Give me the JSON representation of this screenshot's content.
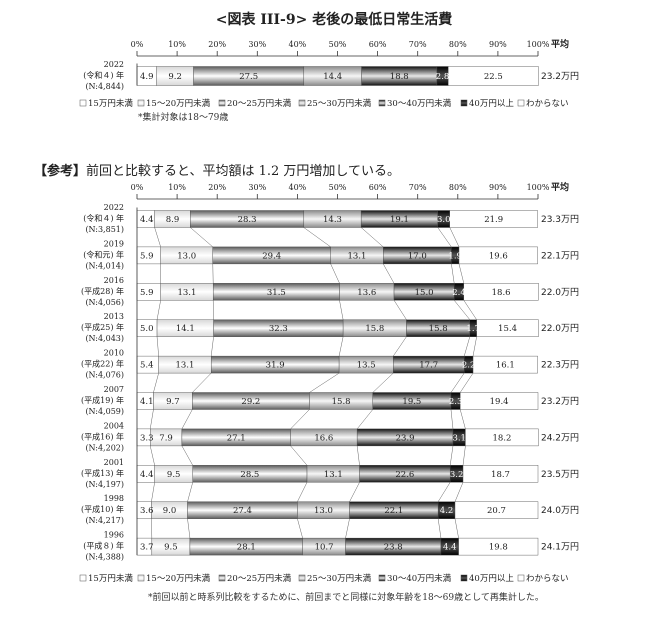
{
  "title": "<図表 III-9> 老後の最低日常生活費",
  "reference": {
    "tag": "【参考】",
    "text": "前回と比較すると、平均額は 1.2 万円増加している。"
  },
  "axis": {
    "ticks": [
      "0%",
      "10%",
      "20%",
      "30%",
      "40%",
      "50%",
      "60%",
      "70%",
      "80%",
      "90%",
      "100%"
    ],
    "avg_header": "平均"
  },
  "legend": [
    "15万円未満",
    "15～20万円未満",
    "20～25万円未満",
    "25～30万円未満",
    "30～40万円未満",
    "40万円以上",
    "わからない"
  ],
  "notes": {
    "chart1": "*集計対象は18～79歳",
    "chart2": "*前回以前と時系列比較をするために、前回までと同様に対象年齢を18～69歳として再集計した。"
  },
  "chart_data": [
    {
      "type": "bar",
      "stacked": true,
      "orientation": "horizontal",
      "xlim": [
        0,
        100
      ],
      "categories": [
        "2022 (令和４) 年 (N:4,844)"
      ],
      "rows": [
        {
          "year": "2022",
          "era": "(令和４) 年",
          "n": "(N:4,844)",
          "values": [
            4.9,
            9.2,
            27.5,
            14.4,
            18.8,
            2.8,
            22.5
          ],
          "labels": [
            "4.9",
            "9.2",
            "27.5",
            "14.4",
            "18.8",
            "2.8",
            "22.5"
          ],
          "avg": "23.2万円"
        }
      ]
    },
    {
      "type": "bar",
      "stacked": true,
      "orientation": "horizontal",
      "xlim": [
        0,
        100
      ],
      "rows": [
        {
          "year": "2022",
          "era": "(令和４) 年",
          "n": "(N:3,851)",
          "values": [
            4.4,
            8.9,
            28.3,
            14.3,
            19.1,
            3.0,
            21.9
          ],
          "labels": [
            "4.4",
            "8.9",
            "28.3",
            "14.3",
            "19.1",
            "3.0",
            "21.9"
          ],
          "avg": "23.3万円"
        },
        {
          "year": "2019",
          "era": "(令和元) 年",
          "n": "(N:4,014)",
          "values": [
            5.9,
            13.0,
            29.4,
            13.1,
            17.0,
            1.9,
            19.6
          ],
          "labels": [
            "5.9",
            "13.0",
            "29.4",
            "13.1",
            "17.0",
            "1.9",
            "19.6"
          ],
          "avg": "22.1万円"
        },
        {
          "year": "2016",
          "era": "(平成28) 年",
          "n": "(N:4,056)",
          "values": [
            5.9,
            13.1,
            31.5,
            13.6,
            15.0,
            2.4,
            18.6
          ],
          "labels": [
            "5.9",
            "13.1",
            "31.5",
            "13.6",
            "15.0",
            "2.4",
            "18.6"
          ],
          "avg": "22.0万円"
        },
        {
          "year": "2013",
          "era": "(平成25) 年",
          "n": "(N:4,043)",
          "values": [
            5.0,
            14.1,
            32.3,
            15.8,
            15.8,
            1.7,
            15.4
          ],
          "labels": [
            "5.0",
            "14.1",
            "32.3",
            "15.8",
            "15.8",
            "1.7",
            "15.4"
          ],
          "avg": "22.0万円"
        },
        {
          "year": "2010",
          "era": "(平成22) 年",
          "n": "(N:4,076)",
          "values": [
            5.4,
            13.1,
            31.9,
            13.5,
            17.7,
            2.2,
            16.1
          ],
          "labels": [
            "5.4",
            "13.1",
            "31.9",
            "13.5",
            "17.7",
            "2.2",
            "16.1"
          ],
          "avg": "22.3万円"
        },
        {
          "year": "2007",
          "era": "(平成19) 年",
          "n": "(N:4,059)",
          "values": [
            4.1,
            9.7,
            29.2,
            15.8,
            19.5,
            2.3,
            19.4
          ],
          "labels": [
            "4.1",
            "9.7",
            "29.2",
            "15.8",
            "19.5",
            "2.3",
            "19.4"
          ],
          "avg": "23.2万円"
        },
        {
          "year": "2004",
          "era": "(平成16) 年",
          "n": "(N:4,202)",
          "values": [
            3.3,
            7.9,
            27.1,
            16.6,
            23.9,
            3.1,
            18.2
          ],
          "labels": [
            "3.3",
            "7.9",
            "27.1",
            "16.6",
            "23.9",
            "3.1",
            "18.2"
          ],
          "avg": "24.2万円"
        },
        {
          "year": "2001",
          "era": "(平成13) 年",
          "n": "(N:4,197)",
          "values": [
            4.4,
            9.5,
            28.5,
            13.1,
            22.6,
            3.2,
            18.7
          ],
          "labels": [
            "4.4",
            "9.5",
            "28.5",
            "13.1",
            "22.6",
            "3.2",
            "18.7"
          ],
          "avg": "23.5万円"
        },
        {
          "year": "1998",
          "era": "(平成10) 年",
          "n": "(N:4,217)",
          "values": [
            3.6,
            9.0,
            27.4,
            13.0,
            22.1,
            4.2,
            20.7
          ],
          "labels": [
            "3.6",
            "9.0",
            "27.4",
            "13.0",
            "22.1",
            "4.2",
            "20.7"
          ],
          "avg": "24.0万円"
        },
        {
          "year": "1996",
          "era": "(平成８) 年",
          "n": "(N:4,388)",
          "values": [
            3.7,
            9.5,
            28.1,
            10.7,
            23.8,
            4.4,
            19.8
          ],
          "labels": [
            "3.7",
            "9.5",
            "28.1",
            "10.7",
            "23.8",
            "4.4",
            "19.8"
          ],
          "avg": "24.1万円"
        }
      ]
    }
  ]
}
